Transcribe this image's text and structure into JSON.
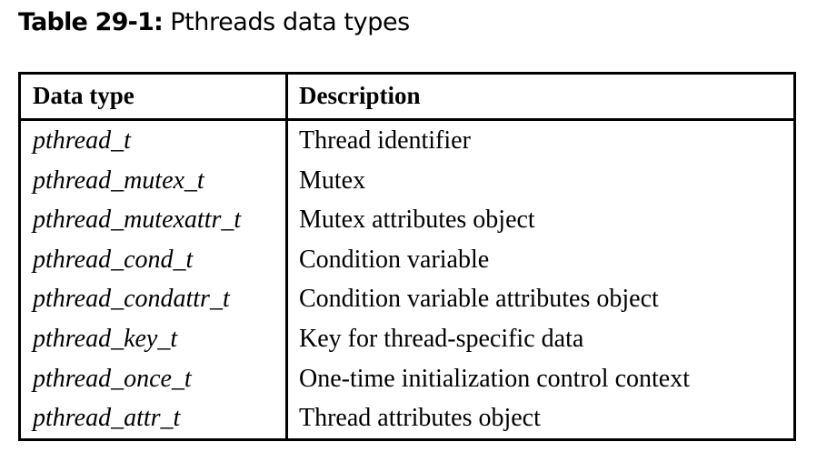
{
  "caption": {
    "label": "Table 29-1:",
    "text": "Pthreads data types"
  },
  "table": {
    "headers": [
      "Data type",
      "Description"
    ],
    "rows": [
      {
        "type": "pthread_t",
        "description": "Thread identifier"
      },
      {
        "type": "pthread_mutex_t",
        "description": "Mutex"
      },
      {
        "type": "pthread_mutexattr_t",
        "description": "Mutex attributes object"
      },
      {
        "type": "pthread_cond_t",
        "description": "Condition variable"
      },
      {
        "type": "pthread_condattr_t",
        "description": "Condition variable attributes object"
      },
      {
        "type": "pthread_key_t",
        "description": "Key for thread-specific data"
      },
      {
        "type": "pthread_once_t",
        "description": "One-time initialization control context"
      },
      {
        "type": "pthread_attr_t",
        "description": "Thread attributes object"
      }
    ]
  }
}
